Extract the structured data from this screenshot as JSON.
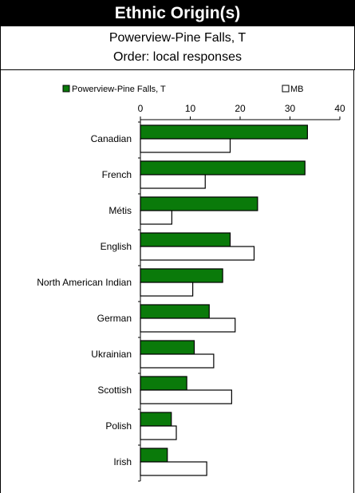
{
  "header": {
    "title": "Ethnic Origin(s)",
    "subtitle": "Powerview-Pine Falls, T",
    "order_note": "Order: local responses"
  },
  "colors": {
    "local": "#0a7a0a",
    "province": "#ffffff",
    "stroke": "#000000"
  },
  "chart_data": {
    "type": "bar",
    "orientation": "horizontal",
    "categories": [
      "Canadian",
      "French",
      "Métis",
      "English",
      "North American Indian",
      "German",
      "Ukrainian",
      "Scottish",
      "Polish",
      "Irish"
    ],
    "series": [
      {
        "name": "Powerview-Pine Falls, T",
        "values": [
          33.5,
          33.0,
          23.5,
          18.0,
          16.5,
          13.8,
          10.8,
          9.3,
          6.2,
          5.4
        ]
      },
      {
        "name": "MB",
        "values": [
          18.0,
          13.0,
          6.3,
          22.8,
          10.5,
          19.0,
          14.7,
          18.3,
          7.2,
          13.3
        ]
      }
    ],
    "xlim": [
      0,
      40
    ],
    "xticks": [
      "0",
      "10",
      "20",
      "30",
      "40"
    ],
    "legend_position": "top",
    "grid": false
  }
}
